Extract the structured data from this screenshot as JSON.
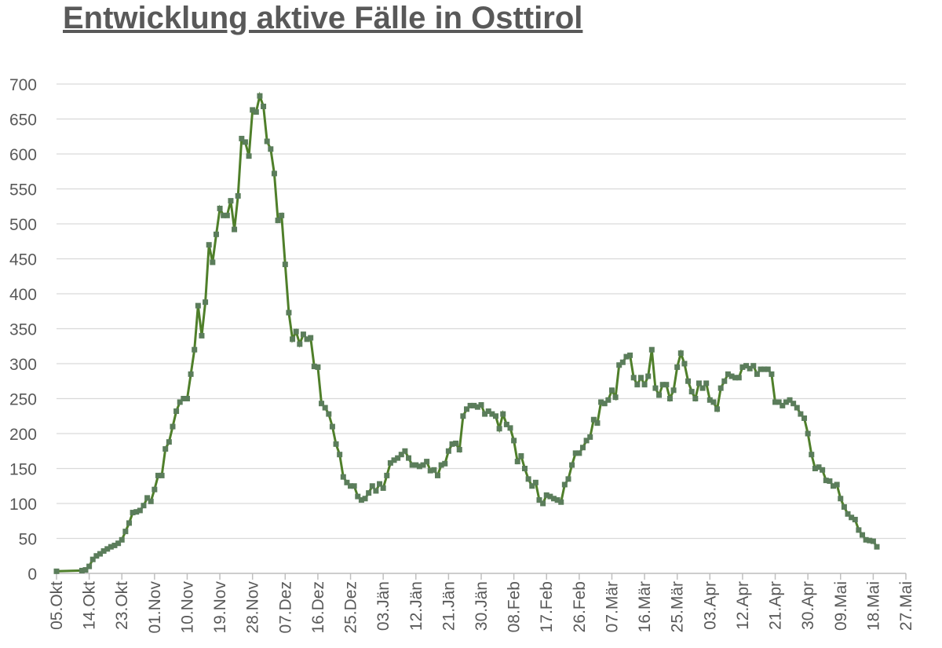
{
  "chart_data": {
    "type": "line",
    "title": "Entwicklung aktive Fälle in Osttirol",
    "x": [
      0,
      7,
      8,
      9,
      10,
      11,
      12,
      13,
      14,
      15,
      16,
      17,
      18,
      19,
      20,
      21,
      22,
      23,
      24,
      25,
      26,
      27,
      28,
      29,
      30,
      31,
      32,
      33,
      34,
      35,
      36,
      37,
      38,
      39,
      40,
      41,
      42,
      43,
      44,
      45,
      46,
      47,
      48,
      49,
      50,
      51,
      52,
      53,
      54,
      55,
      56,
      57,
      58,
      59,
      60,
      61,
      62,
      63,
      64,
      65,
      66,
      67,
      68,
      69,
      70,
      71,
      72,
      73,
      74,
      75,
      76,
      77,
      78,
      79,
      80,
      81,
      82,
      83,
      84,
      85,
      86,
      87,
      88,
      89,
      90,
      91,
      92,
      93,
      94,
      95,
      96,
      97,
      98,
      99,
      100,
      101,
      102,
      103,
      104,
      105,
      106,
      107,
      108,
      109,
      110,
      111,
      112,
      113,
      114,
      115,
      116,
      117,
      118,
      119,
      120,
      121,
      122,
      123,
      124,
      125,
      126,
      127,
      128,
      129,
      130,
      131,
      132,
      133,
      134,
      135,
      136,
      137,
      138,
      139,
      140,
      141,
      142,
      143,
      144,
      145,
      146,
      147,
      148,
      149,
      150,
      151,
      152,
      153,
      154,
      155,
      156,
      157,
      158,
      159,
      160,
      161,
      162,
      163,
      164,
      165,
      166,
      167,
      168,
      169,
      170,
      171,
      172,
      173,
      174,
      175,
      176,
      177,
      178,
      179,
      180,
      181,
      182,
      183,
      184,
      185,
      186,
      187,
      188,
      189,
      190,
      191,
      192,
      193,
      194,
      195,
      196,
      197,
      198,
      199,
      200,
      201,
      202,
      203,
      204,
      205,
      206,
      207,
      208,
      209,
      210,
      211,
      212,
      213,
      214,
      215,
      216,
      217,
      218,
      219,
      220,
      221,
      222,
      223,
      224,
      225,
      226
    ],
    "series": [
      {
        "color": "#4f7f2a",
        "marker_color": "#5b7d5b",
        "values": [
          3,
          4,
          5,
          10,
          20,
          25,
          28,
          32,
          35,
          38,
          40,
          43,
          48,
          60,
          72,
          87,
          88,
          90,
          97,
          108,
          103,
          120,
          140,
          140,
          178,
          188,
          210,
          232,
          245,
          250,
          250,
          285,
          320,
          383,
          340,
          388,
          470,
          445,
          485,
          522,
          512,
          512,
          533,
          492,
          540,
          622,
          617,
          597,
          663,
          660,
          683,
          668,
          618,
          607,
          572,
          505,
          512,
          442,
          373,
          335,
          346,
          328,
          342,
          335,
          337,
          296,
          295,
          243,
          237,
          228,
          210,
          185,
          170,
          138,
          130,
          125,
          125,
          110,
          105,
          107,
          115,
          125,
          118,
          128,
          122,
          140,
          158,
          162,
          165,
          170,
          175,
          165,
          155,
          155,
          153,
          155,
          160,
          147,
          148,
          140,
          155,
          157,
          175,
          185,
          186,
          177,
          225,
          235,
          240,
          240,
          238,
          241,
          228,
          232,
          228,
          225,
          207,
          228,
          213,
          208,
          190,
          160,
          168,
          150,
          135,
          125,
          130,
          105,
          100,
          112,
          110,
          107,
          105,
          102,
          127,
          135,
          155,
          172,
          172,
          180,
          190,
          195,
          220,
          215,
          245,
          243,
          248,
          262,
          252,
          298,
          302,
          310,
          312,
          280,
          270,
          280,
          270,
          282,
          320,
          265,
          255,
          270,
          270,
          250,
          262,
          295,
          315,
          300,
          275,
          260,
          250,
          272,
          265,
          272,
          248,
          245,
          235,
          265,
          275,
          285,
          282,
          280,
          280,
          295,
          297,
          293,
          297,
          285,
          292,
          292,
          292,
          285,
          245,
          245,
          240,
          245,
          248,
          243,
          237,
          228,
          222,
          200,
          170,
          150,
          152,
          148,
          133,
          132,
          125,
          127,
          107,
          95,
          85,
          80,
          77,
          62,
          55,
          48,
          47,
          46,
          38
        ]
      }
    ],
    "xlim": [
      0,
      234
    ],
    "xticks": [
      {
        "value": 0,
        "label": "05.Okt"
      },
      {
        "value": 9,
        "label": "14.Okt"
      },
      {
        "value": 18,
        "label": "23.Okt"
      },
      {
        "value": 27,
        "label": "01.Nov"
      },
      {
        "value": 36,
        "label": "10.Nov"
      },
      {
        "value": 45,
        "label": "19.Nov"
      },
      {
        "value": 54,
        "label": "28.Nov"
      },
      {
        "value": 63,
        "label": "07.Dez"
      },
      {
        "value": 72,
        "label": "16.Dez"
      },
      {
        "value": 81,
        "label": "25.Dez"
      },
      {
        "value": 90,
        "label": "03.Jän"
      },
      {
        "value": 99,
        "label": "12.Jän"
      },
      {
        "value": 108,
        "label": "21.Jän"
      },
      {
        "value": 117,
        "label": "30.Jän"
      },
      {
        "value": 126,
        "label": "08.Feb"
      },
      {
        "value": 135,
        "label": "17.Feb"
      },
      {
        "value": 144,
        "label": "26.Feb"
      },
      {
        "value": 153,
        "label": "07.Mär"
      },
      {
        "value": 162,
        "label": "16.Mär"
      },
      {
        "value": 171,
        "label": "25.Mär"
      },
      {
        "value": 180,
        "label": "03.Apr"
      },
      {
        "value": 189,
        "label": "12.Apr"
      },
      {
        "value": 198,
        "label": "21.Apr"
      },
      {
        "value": 207,
        "label": "30.Apr"
      },
      {
        "value": 216,
        "label": "09.Mai"
      },
      {
        "value": 225,
        "label": "18.Mai"
      },
      {
        "value": 234,
        "label": "27.Mai"
      }
    ],
    "ylim": [
      0,
      700
    ],
    "yticks": [
      0,
      50,
      100,
      150,
      200,
      250,
      300,
      350,
      400,
      450,
      500,
      550,
      600,
      650,
      700
    ],
    "grid": true
  }
}
